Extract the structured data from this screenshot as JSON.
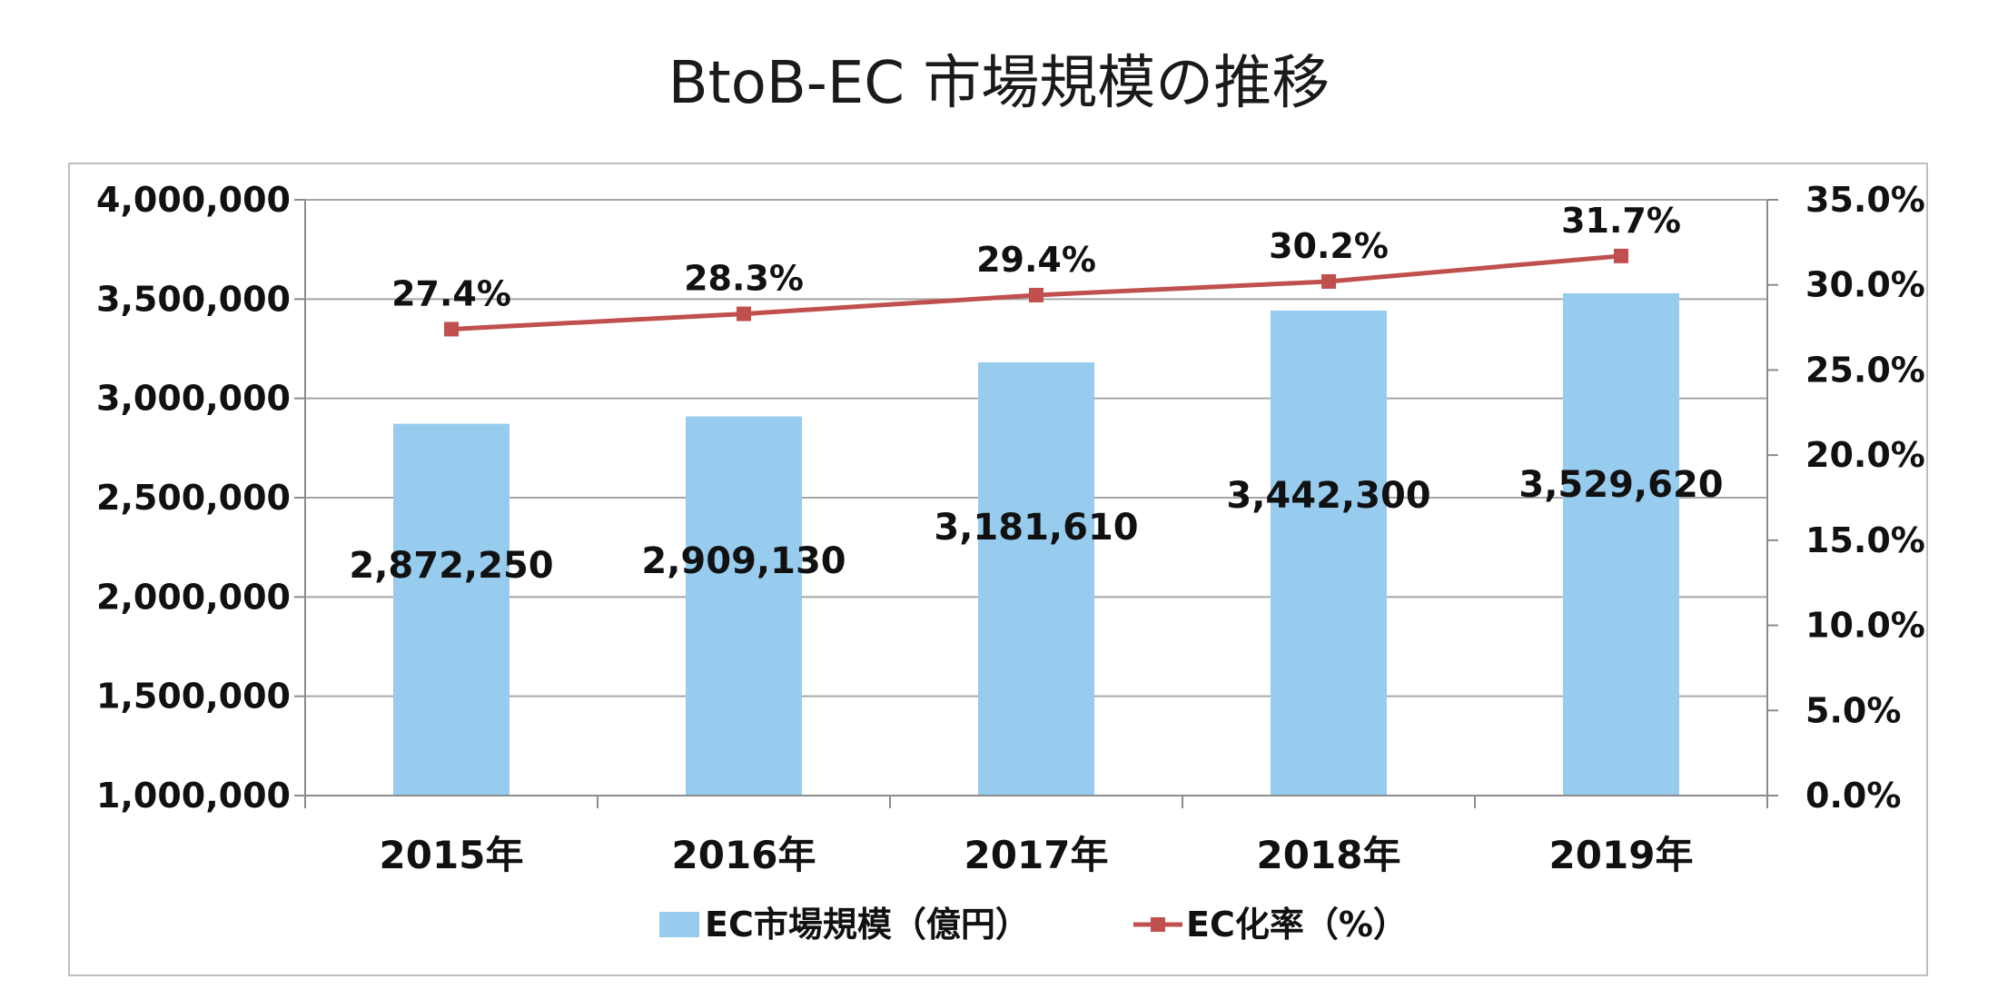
{
  "title": "BtoB-EC 市場規模の推移",
  "chart_data": {
    "type": "bar",
    "title": "BtoB-EC 市場規模の推移",
    "categories": [
      "2015年",
      "2016年",
      "2017年",
      "2018年",
      "2019年"
    ],
    "series": [
      {
        "name": "EC市場規模（億円）",
        "type": "bar",
        "axis": "left",
        "color": "#97CCEE",
        "values": [
          2872250,
          2909130,
          3181610,
          3442300,
          3529620
        ],
        "labels": [
          "2,872,250",
          "2,909,130",
          "3,181,610",
          "3,442,300",
          "3,529,620"
        ]
      },
      {
        "name": "EC化率（%）",
        "type": "line",
        "axis": "right",
        "color": "#C0504D",
        "values": [
          27.4,
          28.3,
          29.4,
          30.2,
          31.7
        ],
        "labels": [
          "27.4%",
          "28.3%",
          "29.4%",
          "30.2%",
          "31.7%"
        ]
      }
    ],
    "y_left": {
      "min": 1000000,
      "max": 4000000,
      "ticks": [
        1000000,
        1500000,
        2000000,
        2500000,
        3000000,
        3500000,
        4000000
      ],
      "tick_labels": [
        "1,000,000",
        "1,500,000",
        "2,000,000",
        "2,500,000",
        "3,000,000",
        "3,500,000",
        "4,000,000"
      ]
    },
    "y_right": {
      "min": 0,
      "max": 35,
      "ticks": [
        0,
        5,
        10,
        15,
        20,
        25,
        30,
        35
      ],
      "tick_labels": [
        "0.0%",
        "5.0%",
        "10.0%",
        "15.0%",
        "20.0%",
        "25.0%",
        "30.0%",
        "35.0%"
      ]
    },
    "grid": true,
    "legend": "bottom"
  }
}
